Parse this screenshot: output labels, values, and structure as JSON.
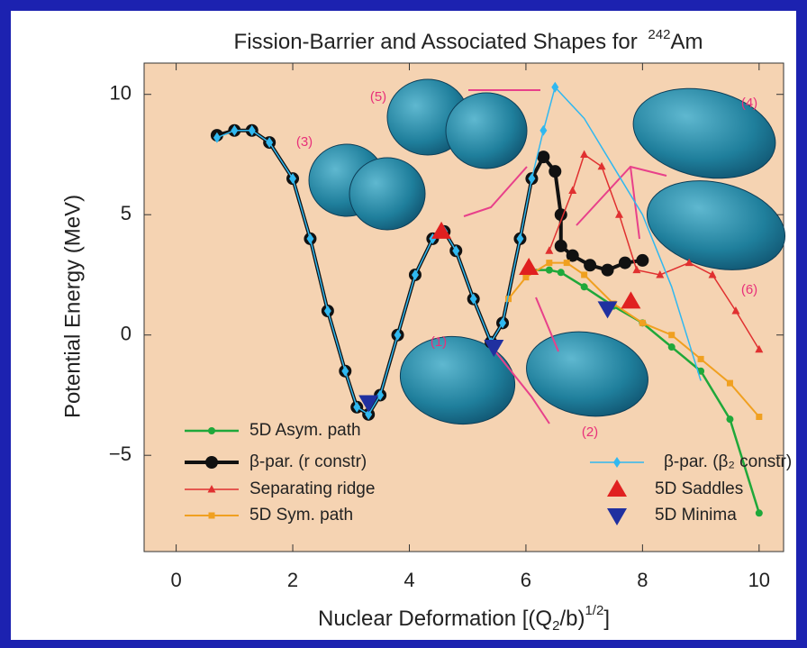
{
  "chart_data": {
    "type": "line",
    "title": [
      "Fission-Barrier and Associated Shapes for",
      "242",
      "Am"
    ],
    "x_label": [
      "Nuclear Deformation [(Q",
      "2",
      "/b)",
      "1/2",
      "]"
    ],
    "y_label": "Potential Energy (MeV)",
    "xlim": [
      -0.55,
      10.42
    ],
    "ylim": [
      -9,
      11.3
    ],
    "xticks": [
      0,
      2,
      4,
      6,
      8,
      10
    ],
    "yticks": [
      {
        "value": -5,
        "label": "−5"
      },
      0,
      5,
      10
    ],
    "annotations": [
      "(1)",
      "(2)",
      "(3)",
      "(4)",
      "(5)",
      "(6)"
    ],
    "series": [
      {
        "name": "5D Asym. path",
        "color": "#1fa83a",
        "marker": "circle",
        "x": [
          6.0,
          6.4,
          6.6,
          7.0,
          7.5,
          8.0,
          8.5,
          9.0,
          9.5,
          10.0
        ],
        "values": [
          2.7,
          2.7,
          2.6,
          2.0,
          1.2,
          0.5,
          -0.5,
          -1.5,
          -3.5,
          -7.4
        ]
      },
      {
        "name": "β-par. (r constr)",
        "color": "#111111",
        "marker": "bigcircle",
        "x": [
          0.7,
          1.0,
          1.3,
          1.6,
          2.0,
          2.3,
          2.6,
          2.9,
          3.1,
          3.3,
          3.5,
          3.8,
          4.1,
          4.4,
          4.6,
          4.8,
          5.1,
          5.4,
          5.6,
          5.9,
          6.1,
          6.3,
          6.5,
          6.6,
          6.6,
          6.8,
          7.1,
          7.4,
          7.7,
          8.0
        ],
        "values": [
          8.3,
          8.5,
          8.5,
          8.0,
          6.5,
          4.0,
          1.0,
          -1.5,
          -3.0,
          -3.3,
          -2.5,
          0.0,
          2.5,
          4.0,
          4.3,
          3.5,
          1.5,
          -0.3,
          0.5,
          4.0,
          6.5,
          7.4,
          6.8,
          5.0,
          3.7,
          3.3,
          2.9,
          2.7,
          3.0,
          3.1
        ]
      },
      {
        "name": "Separating ridge",
        "color": "#e03030",
        "marker": "triangle",
        "x": [
          6.4,
          6.8,
          7.0,
          7.3,
          7.6,
          7.9,
          8.3,
          8.8,
          9.2,
          9.6,
          10.0
        ],
        "values": [
          3.5,
          6.0,
          7.5,
          7.0,
          5.0,
          2.7,
          2.5,
          3.0,
          2.5,
          1.0,
          -0.6
        ]
      },
      {
        "name": "5D Sym. path",
        "color": "#f0a020",
        "marker": "square",
        "x": [
          5.7,
          6.0,
          6.4,
          6.7,
          7.0,
          7.5,
          8.0,
          8.5,
          9.0,
          9.5,
          10.0
        ],
        "values": [
          1.5,
          2.4,
          3.0,
          3.0,
          2.5,
          1.3,
          0.5,
          0.0,
          -1.0,
          -2.0,
          -3.4
        ]
      },
      {
        "name": "β-par. (β₂ constr)",
        "color": "#30b8f0",
        "marker": "diamond",
        "x": [
          0.7,
          1.0,
          1.3,
          1.6,
          2.0,
          2.3,
          2.6,
          2.9,
          3.1,
          3.3,
          3.5,
          3.8,
          4.1,
          4.4,
          4.6,
          4.8,
          5.1,
          5.4,
          5.6,
          5.9,
          6.1,
          6.3,
          6.5,
          7.0,
          7.5,
          8.0,
          8.5,
          9.0
        ],
        "values": [
          8.2,
          8.5,
          8.5,
          8.0,
          6.5,
          4.0,
          1.0,
          -1.5,
          -3.0,
          -3.3,
          -2.5,
          0.0,
          2.5,
          4.0,
          4.3,
          3.5,
          1.5,
          -0.3,
          0.5,
          4.0,
          6.5,
          8.5,
          10.3,
          9.0,
          7.0,
          5.0,
          2.0,
          -1.9
        ]
      },
      {
        "name": "5D Saddles",
        "color": "#e02020",
        "marker": "bigtriangle",
        "line": false,
        "x": [
          4.55,
          6.05,
          7.8
        ],
        "values": [
          4.3,
          2.8,
          1.4
        ]
      },
      {
        "name": "5D Minima",
        "color": "#2030a0",
        "marker": "bigdown",
        "line": false,
        "x": [
          3.3,
          5.45,
          7.4
        ],
        "values": [
          -2.8,
          -0.5,
          1.1
        ]
      }
    ]
  }
}
